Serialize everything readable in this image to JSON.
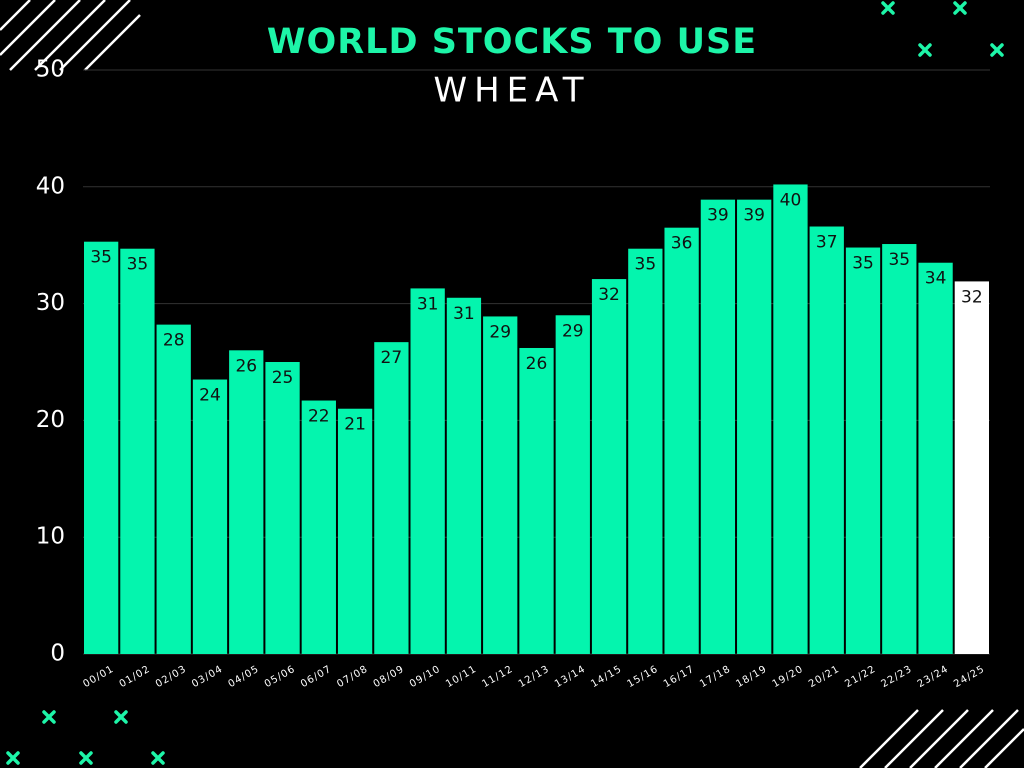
{
  "chart_data": {
    "type": "bar",
    "title": "WORLD STOCKS TO USE",
    "subtitle": "WHEAT",
    "categories": [
      "00/01",
      "01/02",
      "02/03",
      "03/04",
      "04/05",
      "05/06",
      "06/07",
      "07/08",
      "08/09",
      "09/10",
      "10/11",
      "11/12",
      "12/13",
      "13/14",
      "14/15",
      "15/16",
      "16/17",
      "17/18",
      "18/19",
      "19/20",
      "20/21",
      "21/22",
      "22/23",
      "23/24",
      "24/25"
    ],
    "values": [
      35.3,
      34.7,
      28.2,
      23.5,
      26.0,
      25.0,
      21.7,
      21.0,
      26.7,
      31.3,
      30.5,
      28.9,
      26.2,
      29.0,
      32.1,
      34.7,
      36.5,
      38.9,
      38.9,
      40.2,
      36.6,
      34.8,
      35.1,
      33.5,
      31.9
    ],
    "value_labels": [
      "35",
      "35",
      "28",
      "24",
      "26",
      "25",
      "22",
      "21",
      "27",
      "31",
      "31",
      "29",
      "26",
      "29",
      "32",
      "35",
      "36",
      "39",
      "39",
      "40",
      "37",
      "35",
      "35",
      "34",
      "32"
    ],
    "colors": [
      "#04f5ae",
      "#04f5ae",
      "#04f5ae",
      "#04f5ae",
      "#04f5ae",
      "#04f5ae",
      "#04f5ae",
      "#04f5ae",
      "#04f5ae",
      "#04f5ae",
      "#04f5ae",
      "#04f5ae",
      "#04f5ae",
      "#04f5ae",
      "#04f5ae",
      "#04f5ae",
      "#04f5ae",
      "#04f5ae",
      "#04f5ae",
      "#04f5ae",
      "#04f5ae",
      "#04f5ae",
      "#04f5ae",
      "#04f5ae",
      "#ffffff"
    ],
    "ylim": [
      0,
      50
    ],
    "yticks": [
      0,
      10,
      20,
      30,
      40,
      50
    ],
    "grid": true
  }
}
